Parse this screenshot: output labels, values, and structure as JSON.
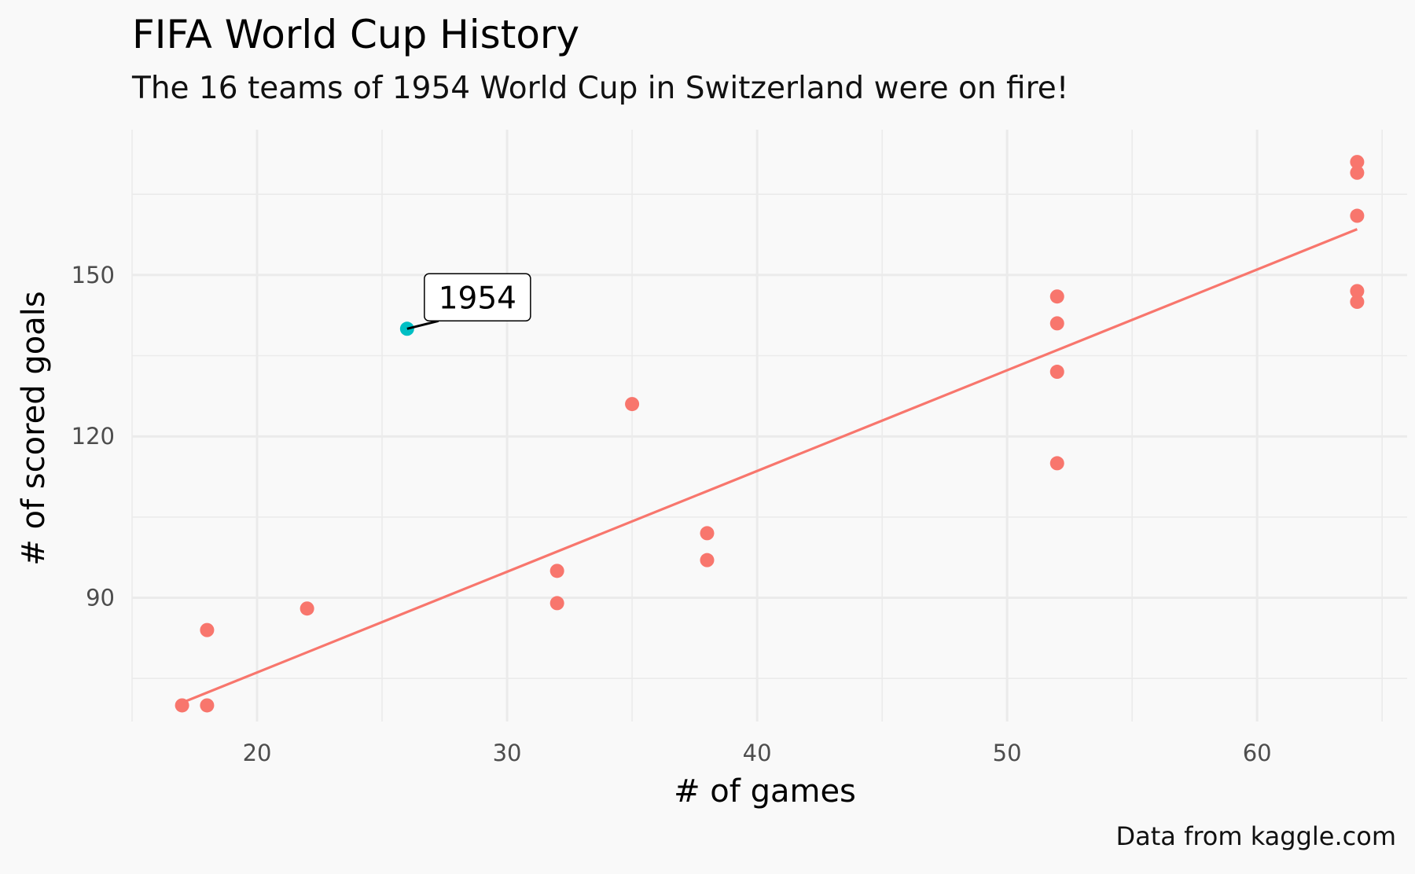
{
  "chart_data": {
    "type": "scatter",
    "title": "FIFA World Cup History",
    "subtitle": "The 16 teams of 1954 World Cup in Switzerland were on fire!",
    "caption": "Data from kaggle.com",
    "xlabel": "# of games",
    "ylabel": "# of scored goals",
    "xlim": [
      15,
      66
    ],
    "ylim": [
      67,
      177
    ],
    "x_ticks": [
      20,
      30,
      40,
      50,
      60
    ],
    "y_ticks": [
      90,
      120,
      150
    ],
    "grid": true,
    "colors": {
      "default": "#f8766d",
      "highlight": "#00bfc4",
      "background": "#f9f9f9",
      "grid": "#ebebeb"
    },
    "points": [
      {
        "x": 17,
        "y": 70,
        "highlight": false
      },
      {
        "x": 18,
        "y": 70,
        "highlight": false
      },
      {
        "x": 18,
        "y": 84,
        "highlight": false
      },
      {
        "x": 22,
        "y": 88,
        "highlight": false
      },
      {
        "x": 26,
        "y": 140,
        "highlight": true,
        "label": "1954"
      },
      {
        "x": 32,
        "y": 89,
        "highlight": false
      },
      {
        "x": 32,
        "y": 95,
        "highlight": false
      },
      {
        "x": 35,
        "y": 126,
        "highlight": false
      },
      {
        "x": 38,
        "y": 97,
        "highlight": false
      },
      {
        "x": 38,
        "y": 102,
        "highlight": false
      },
      {
        "x": 52,
        "y": 115,
        "highlight": false
      },
      {
        "x": 52,
        "y": 132,
        "highlight": false
      },
      {
        "x": 52,
        "y": 141,
        "highlight": false
      },
      {
        "x": 52,
        "y": 146,
        "highlight": false
      },
      {
        "x": 64,
        "y": 145,
        "highlight": false
      },
      {
        "x": 64,
        "y": 147,
        "highlight": false
      },
      {
        "x": 64,
        "y": 161,
        "highlight": false
      },
      {
        "x": 64,
        "y": 169,
        "highlight": false
      },
      {
        "x": 64,
        "y": 171,
        "highlight": false
      }
    ],
    "trend_line": {
      "x": [
        17,
        64
      ],
      "y": [
        70.5,
        158.5
      ]
    }
  }
}
